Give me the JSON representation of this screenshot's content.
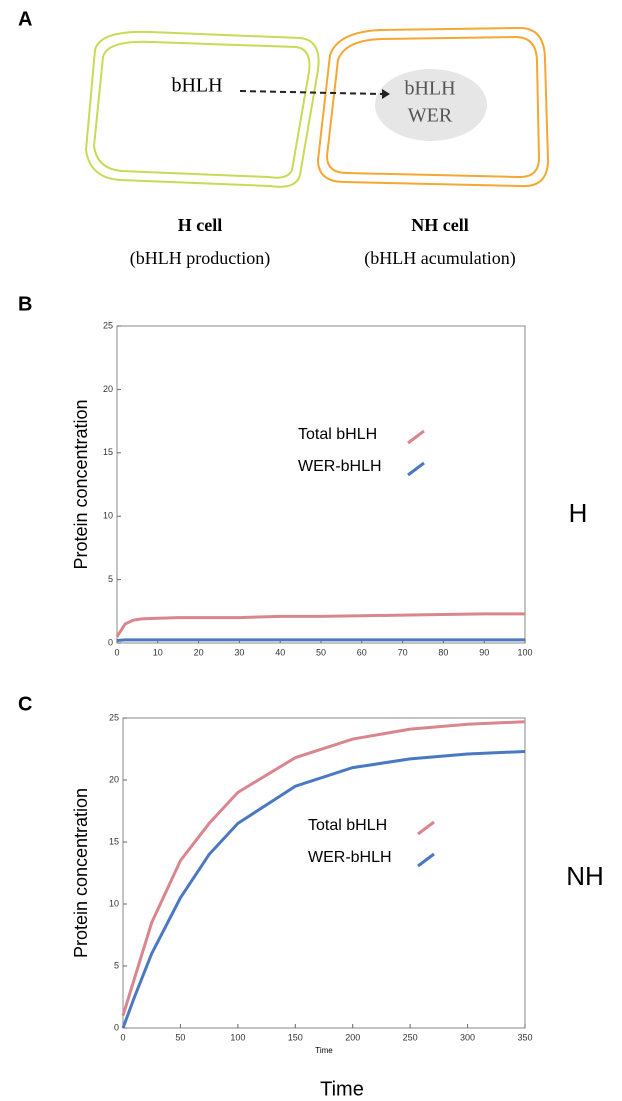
{
  "panel_a": {
    "label": "A",
    "h_cell_text": "bHLH",
    "nh_cell_text": [
      "bHLH",
      "WER"
    ],
    "h_cell_title": "H cell",
    "h_cell_subtitle": "(bHLH production)",
    "nh_cell_title": "NH cell",
    "nh_cell_subtitle": "(bHLH acumulation)"
  },
  "figure_xlabel": "Time",
  "chart_data": [
    {
      "type": "line",
      "panel_label": "B",
      "ylabel": "Protein concentration",
      "side_label": "H",
      "xlim": [
        0,
        100
      ],
      "ylim": [
        0,
        25
      ],
      "xticks": [
        0,
        10,
        20,
        30,
        40,
        50,
        60,
        70,
        80,
        90,
        100
      ],
      "yticks": [
        0,
        5,
        10,
        15,
        20,
        25
      ],
      "x": [
        0,
        2,
        4,
        6,
        10,
        15,
        20,
        30,
        40,
        50,
        60,
        70,
        80,
        90,
        100
      ],
      "series": [
        {
          "name": "Total bHLH",
          "color": "#d9868f",
          "values": [
            0.5,
            1.5,
            1.8,
            1.9,
            1.95,
            2.0,
            2.0,
            2.0,
            2.1,
            2.1,
            2.15,
            2.2,
            2.25,
            2.3,
            2.3
          ]
        },
        {
          "name": "WER-bHLH",
          "color": "#4a78c2",
          "values": [
            0.2,
            0.25,
            0.25,
            0.25,
            0.25,
            0.25,
            0.25,
            0.25,
            0.25,
            0.25,
            0.25,
            0.25,
            0.25,
            0.25,
            0.25
          ]
        }
      ]
    },
    {
      "type": "line",
      "panel_label": "C",
      "ylabel": "Protein concentration",
      "side_label": "NH",
      "xlabel": "Time",
      "xlim": [
        0,
        350
      ],
      "ylim": [
        0,
        25
      ],
      "xticks": [
        0,
        50,
        100,
        150,
        200,
        250,
        300,
        350
      ],
      "yticks": [
        0,
        5,
        10,
        15,
        20,
        25
      ],
      "x": [
        0,
        10,
        25,
        50,
        75,
        100,
        150,
        200,
        250,
        300,
        350
      ],
      "series": [
        {
          "name": "Total bHLH",
          "color": "#d9868f",
          "values": [
            1,
            4,
            8.5,
            13.5,
            16.5,
            19,
            21.8,
            23.3,
            24.1,
            24.5,
            24.7
          ]
        },
        {
          "name": "WER-bHLH",
          "color": "#4a78c2",
          "values": [
            0,
            2.5,
            6,
            10.5,
            14,
            16.5,
            19.5,
            21,
            21.7,
            22.1,
            22.3
          ]
        }
      ]
    }
  ]
}
